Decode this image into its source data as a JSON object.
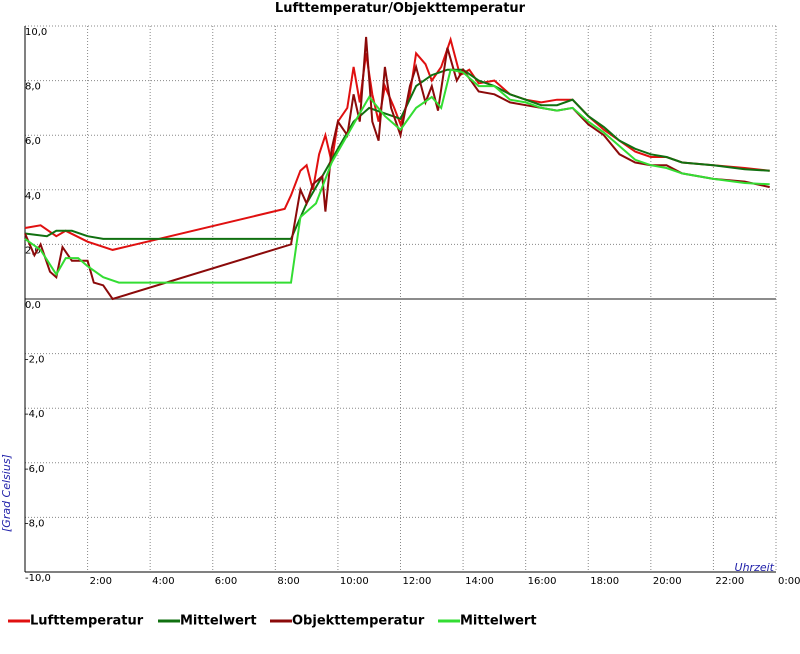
{
  "chart_data": {
    "type": "line",
    "title": "Lufttemperatur/Objekttemperatur",
    "y_label": "[Grad Celsius]",
    "x_label": "Uhrzeit",
    "xlim": [
      0,
      24
    ],
    "ylim": [
      -10,
      10
    ],
    "grid": true,
    "xticks": [
      {
        "value": 2,
        "label": "2:00"
      },
      {
        "value": 4,
        "label": "4:00"
      },
      {
        "value": 6,
        "label": "6:00"
      },
      {
        "value": 8,
        "label": "8:00"
      },
      {
        "value": 10,
        "label": "10:00"
      },
      {
        "value": 12,
        "label": "12:00"
      },
      {
        "value": 14,
        "label": "14:00"
      },
      {
        "value": 16,
        "label": "16:00"
      },
      {
        "value": 18,
        "label": "18:00"
      },
      {
        "value": 20,
        "label": "20:00"
      },
      {
        "value": 22,
        "label": "22:00"
      },
      {
        "value": 24,
        "label": "0:00"
      }
    ],
    "yticks": [
      {
        "value": -10,
        "label": "-10,0"
      },
      {
        "value": -8,
        "label": "-8,0"
      },
      {
        "value": -6,
        "label": "-6,0"
      },
      {
        "value": -4,
        "label": "-4,0"
      },
      {
        "value": -2,
        "label": "-2,0"
      },
      {
        "value": 0,
        "label": "0,0"
      },
      {
        "value": 2,
        "label": "2,0"
      },
      {
        "value": 4,
        "label": "4,0"
      },
      {
        "value": 6,
        "label": "6,0"
      },
      {
        "value": 8,
        "label": "8,0"
      },
      {
        "value": 10,
        "label": "10,0"
      }
    ],
    "series": [
      {
        "name": "Lufttemperatur",
        "color": "#e01010",
        "x": [
          0,
          0.5,
          1.0,
          1.3,
          2.0,
          2.8,
          8.3,
          8.5,
          8.8,
          9.0,
          9.2,
          9.4,
          9.6,
          9.8,
          10.0,
          10.3,
          10.5,
          10.7,
          10.9,
          11.1,
          11.3,
          11.5,
          11.8,
          12.0,
          12.3,
          12.5,
          12.8,
          13.0,
          13.3,
          13.6,
          13.9,
          14.2,
          14.5,
          15.0,
          15.5,
          16.0,
          16.5,
          17.0,
          17.5,
          18.0,
          18.5,
          19.0,
          19.5,
          20.0,
          20.5,
          21.0,
          22.0,
          23.0,
          23.8
        ],
        "values": [
          2.6,
          2.7,
          2.3,
          2.5,
          2.1,
          1.8,
          3.3,
          3.8,
          4.7,
          4.9,
          4.0,
          5.3,
          6.0,
          5.0,
          6.5,
          7.0,
          8.5,
          7.2,
          9.0,
          7.5,
          6.5,
          7.8,
          7.0,
          6.4,
          7.5,
          9.0,
          8.6,
          8.0,
          8.5,
          9.5,
          8.2,
          8.4,
          7.9,
          8.0,
          7.5,
          7.3,
          7.2,
          7.3,
          7.3,
          6.7,
          6.2,
          5.8,
          5.4,
          5.2,
          5.2,
          5.0,
          4.9,
          4.8,
          4.7
        ]
      },
      {
        "name": "Mittelwert",
        "color": "#107010",
        "x": [
          0,
          0.7,
          1.0,
          1.5,
          2.0,
          2.5,
          8.5,
          9.0,
          9.5,
          10.0,
          10.5,
          11.0,
          11.5,
          12.0,
          12.5,
          13.0,
          13.5,
          14.0,
          14.5,
          15.0,
          15.5,
          16.0,
          16.5,
          17.0,
          17.5,
          18.0,
          18.5,
          19.0,
          19.5,
          20.0,
          20.5,
          21.0,
          22.0,
          23.0,
          23.8
        ],
        "values": [
          2.4,
          2.3,
          2.5,
          2.5,
          2.3,
          2.2,
          2.2,
          3.5,
          4.5,
          5.5,
          6.5,
          7.0,
          6.8,
          6.6,
          7.8,
          8.2,
          8.4,
          8.4,
          8.0,
          7.8,
          7.5,
          7.3,
          7.1,
          7.1,
          7.3,
          6.7,
          6.3,
          5.8,
          5.5,
          5.3,
          5.2,
          5.0,
          4.9,
          4.75,
          4.7
        ]
      },
      {
        "name": "Objekttemperatur",
        "color": "#8b0a0a",
        "x": [
          0,
          0.3,
          0.5,
          0.8,
          1.0,
          1.2,
          1.5,
          2.0,
          2.2,
          2.5,
          2.8,
          8.5,
          8.8,
          9.0,
          9.2,
          9.5,
          9.6,
          9.8,
          10.0,
          10.3,
          10.5,
          10.7,
          10.9,
          11.1,
          11.3,
          11.5,
          11.7,
          12.0,
          12.3,
          12.5,
          12.8,
          13.0,
          13.2,
          13.5,
          13.8,
          14.0,
          14.5,
          15.0,
          15.5,
          16.0,
          16.5,
          17.0,
          17.5,
          18.0,
          18.5,
          19.0,
          19.5,
          20.0,
          20.5,
          21.0,
          22.0,
          23.0,
          23.8
        ],
        "values": [
          2.4,
          1.6,
          2.0,
          1.0,
          0.8,
          1.9,
          1.4,
          1.4,
          0.6,
          0.5,
          0.0,
          2.0,
          4.0,
          3.5,
          4.2,
          4.5,
          3.2,
          5.5,
          6.5,
          6.0,
          7.5,
          6.5,
          9.6,
          6.5,
          5.8,
          8.5,
          7.0,
          6.0,
          7.8,
          8.5,
          7.2,
          7.8,
          6.9,
          9.2,
          8.0,
          8.4,
          7.6,
          7.5,
          7.2,
          7.1,
          7.0,
          6.9,
          7.0,
          6.4,
          6.0,
          5.3,
          5.0,
          4.9,
          4.9,
          4.6,
          4.4,
          4.3,
          4.1
        ]
      },
      {
        "name": "Mittelwert",
        "color": "#33dd33",
        "x": [
          0,
          0.5,
          1.0,
          1.3,
          1.7,
          2.0,
          2.5,
          3.0,
          8.5,
          8.8,
          9.3,
          9.8,
          10.3,
          10.8,
          11.0,
          11.5,
          12.0,
          12.5,
          13.0,
          13.3,
          13.6,
          14.0,
          14.5,
          15.0,
          15.5,
          16.0,
          16.5,
          17.0,
          17.5,
          18.0,
          18.5,
          19.0,
          19.5,
          20.0,
          20.5,
          21.0,
          22.0,
          23.0,
          23.8
        ],
        "values": [
          2.2,
          1.8,
          0.9,
          1.5,
          1.5,
          1.2,
          0.8,
          0.6,
          0.6,
          3.0,
          3.5,
          5.0,
          6.0,
          7.0,
          7.4,
          6.7,
          6.2,
          7.0,
          7.4,
          7.0,
          8.4,
          8.3,
          7.8,
          7.8,
          7.3,
          7.2,
          7.0,
          6.9,
          7.0,
          6.5,
          6.1,
          5.6,
          5.1,
          4.9,
          4.8,
          4.6,
          4.4,
          4.25,
          4.2
        ]
      }
    ]
  }
}
